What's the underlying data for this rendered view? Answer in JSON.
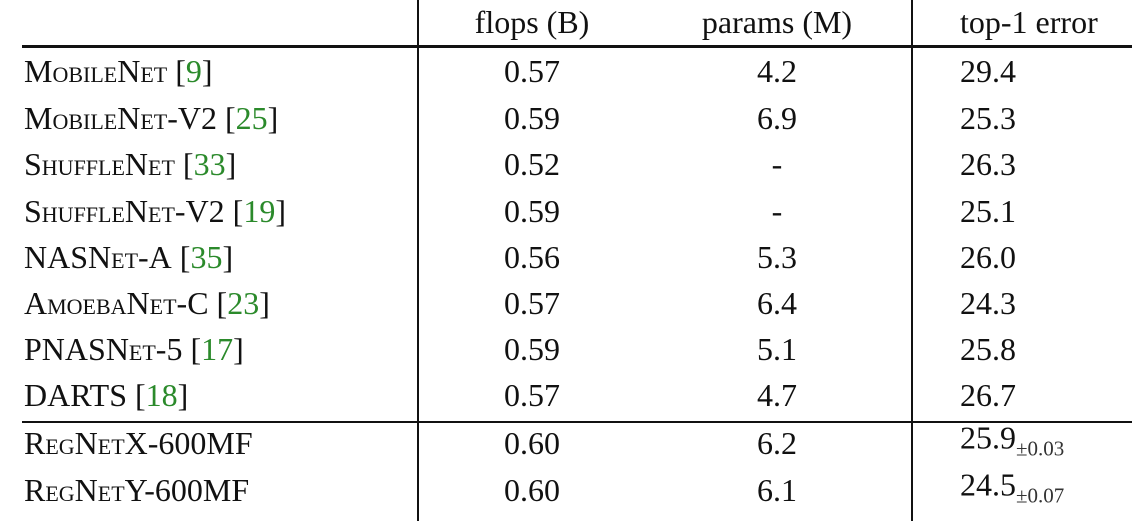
{
  "table": {
    "header": [
      "flops (B)",
      "params (M)",
      "top-1 error"
    ],
    "rows": [
      {
        "name": "MobileNet",
        "cite": [
          "[",
          "9",
          "]"
        ],
        "flops": "0.57",
        "params": "4.2",
        "error": "29.4"
      },
      {
        "name": "MobileNet-V2",
        "cite": [
          "[",
          "25",
          "]"
        ],
        "flops": "0.59",
        "params": "6.9",
        "error": "25.3"
      },
      {
        "name": "ShuffleNet",
        "cite": [
          "[",
          "33",
          "]"
        ],
        "flops": "0.52",
        "params": "-",
        "error": "26.3"
      },
      {
        "name": "ShuffleNet-V2",
        "cite": [
          "[",
          "19",
          "]"
        ],
        "flops": "0.59",
        "params": "-",
        "error": "25.1"
      },
      {
        "name": "NASNet-A",
        "cite": [
          "[",
          "35",
          "]"
        ],
        "flops": "0.56",
        "params": "5.3",
        "error": "26.0"
      },
      {
        "name": "AmoebaNet-C",
        "cite": [
          "[",
          "23",
          "]"
        ],
        "flops": "0.57",
        "params": "6.4",
        "error": "24.3"
      },
      {
        "name": "PNASNet-5",
        "cite": [
          "[",
          "17",
          "]"
        ],
        "flops": "0.59",
        "params": "5.1",
        "error": "25.8"
      },
      {
        "name": "DARTS",
        "cite": [
          "[",
          "18",
          "]"
        ],
        "flops": "0.57",
        "params": "4.7",
        "error": "26.7"
      },
      {
        "name": "RegNetX-600MF",
        "flops": "0.60",
        "params": "6.2",
        "error": "25.9",
        "error_pm": "±0.03"
      },
      {
        "name": "RegNetY-600MF",
        "flops": "0.60",
        "params": "6.1",
        "error": "24.5",
        "error_pm": "±0.07"
      }
    ]
  }
}
